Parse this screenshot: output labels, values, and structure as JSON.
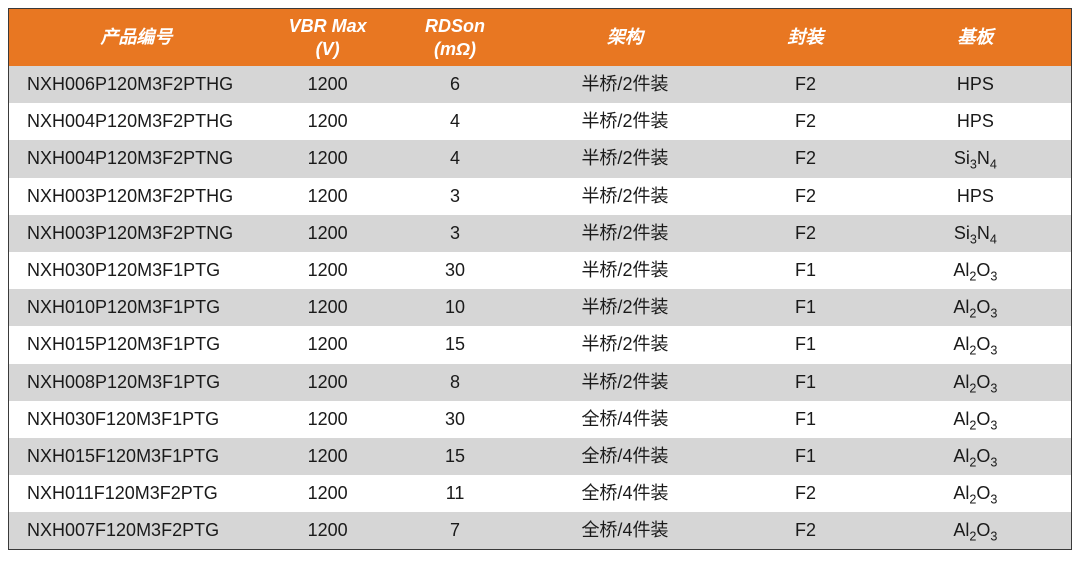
{
  "table": {
    "type": "table",
    "header_bg": "#e87722",
    "header_fg": "#ffffff",
    "row_odd_bg": "#d6d6d6",
    "row_even_bg": "#ffffff",
    "cell_fg": "#1a1a1a",
    "border_color": "#3a3a3a",
    "header_fontsize": 18,
    "cell_fontsize": 18,
    "header_italic": true,
    "column_widths_pct": [
      24,
      12,
      12,
      20,
      14,
      18
    ],
    "columns": [
      {
        "key": "part",
        "label": "产品编号",
        "align": "left"
      },
      {
        "key": "vbr",
        "label": "VBR Max\n(V)",
        "align": "center"
      },
      {
        "key": "rdson",
        "label": "RDSon\n(mΩ)",
        "align": "center"
      },
      {
        "key": "arch",
        "label": "架构",
        "align": "center"
      },
      {
        "key": "pkg",
        "label": "封装",
        "align": "center"
      },
      {
        "key": "substrate",
        "label": "基板",
        "align": "center"
      }
    ],
    "rows": [
      {
        "part": "NXH006P120M3F2PTHG",
        "vbr": "1200",
        "rdson": "6",
        "arch": "半桥/2件装",
        "pkg": "F2",
        "substrate": "HPS"
      },
      {
        "part": "NXH004P120M3F2PTHG",
        "vbr": "1200",
        "rdson": "4",
        "arch": "半桥/2件装",
        "pkg": "F2",
        "substrate": "HPS"
      },
      {
        "part": "NXH004P120M3F2PTNG",
        "vbr": "1200",
        "rdson": "4",
        "arch": "半桥/2件装",
        "pkg": "F2",
        "substrate": "Si3N4"
      },
      {
        "part": "NXH003P120M3F2PTHG",
        "vbr": "1200",
        "rdson": "3",
        "arch": "半桥/2件装",
        "pkg": "F2",
        "substrate": "HPS"
      },
      {
        "part": "NXH003P120M3F2PTNG",
        "vbr": "1200",
        "rdson": "3",
        "arch": "半桥/2件装",
        "pkg": "F2",
        "substrate": "Si3N4"
      },
      {
        "part": "NXH030P120M3F1PTG",
        "vbr": "1200",
        "rdson": "30",
        "arch": "半桥/2件装",
        "pkg": "F1",
        "substrate": "Al2O3"
      },
      {
        "part": "NXH010P120M3F1PTG",
        "vbr": "1200",
        "rdson": "10",
        "arch": "半桥/2件装",
        "pkg": "F1",
        "substrate": "Al2O3"
      },
      {
        "part": "NXH015P120M3F1PTG",
        "vbr": "1200",
        "rdson": "15",
        "arch": "半桥/2件装",
        "pkg": "F1",
        "substrate": "Al2O3"
      },
      {
        "part": "NXH008P120M3F1PTG",
        "vbr": "1200",
        "rdson": "8",
        "arch": "半桥/2件装",
        "pkg": "F1",
        "substrate": "Al2O3"
      },
      {
        "part": "NXH030F120M3F1PTG",
        "vbr": "1200",
        "rdson": "30",
        "arch": "全桥/4件装",
        "pkg": "F1",
        "substrate": "Al2O3"
      },
      {
        "part": "NXH015F120M3F1PTG",
        "vbr": "1200",
        "rdson": "15",
        "arch": "全桥/4件装",
        "pkg": "F1",
        "substrate": "Al2O3"
      },
      {
        "part": "NXH011F120M3F2PTG",
        "vbr": "1200",
        "rdson": "11",
        "arch": "全桥/4件装",
        "pkg": "F2",
        "substrate": "Al2O3"
      },
      {
        "part": "NXH007F120M3F2PTG",
        "vbr": "1200",
        "rdson": "7",
        "arch": "全桥/4件装",
        "pkg": "F2",
        "substrate": "Al2O3"
      }
    ]
  }
}
